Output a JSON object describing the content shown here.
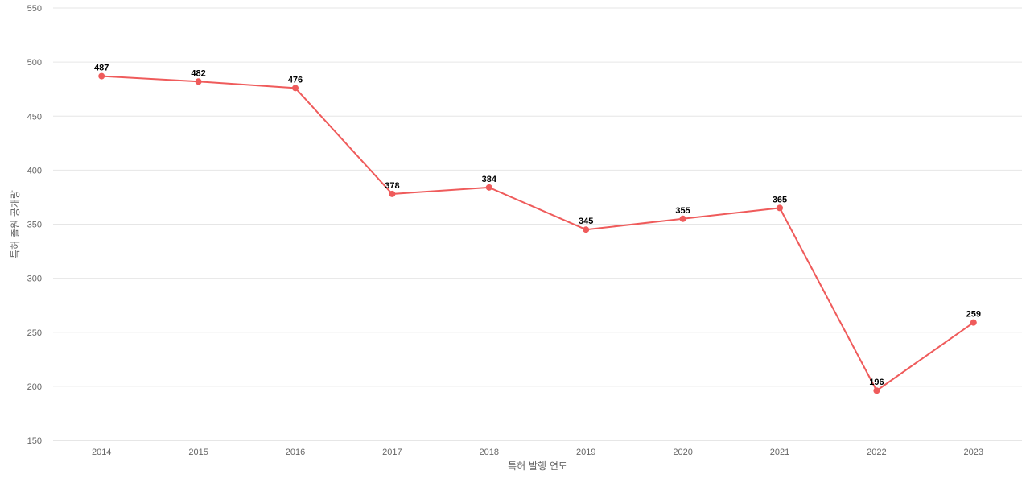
{
  "chart_data": {
    "type": "line",
    "title": "",
    "xlabel": "특허 발행 연도",
    "ylabel": "특허 출원 공개량",
    "x": [
      "2014",
      "2015",
      "2016",
      "2017",
      "2018",
      "2019",
      "2020",
      "2021",
      "2022",
      "2023"
    ],
    "values": [
      487,
      482,
      476,
      378,
      384,
      345,
      355,
      365,
      196,
      259
    ],
    "ylim": [
      150,
      550
    ],
    "yticks": [
      150,
      200,
      250,
      300,
      350,
      400,
      450,
      500,
      550
    ],
    "grid": true,
    "legend": "none",
    "colors": {
      "line": "#ef5b5b",
      "point": "#ef5b5b"
    }
  }
}
